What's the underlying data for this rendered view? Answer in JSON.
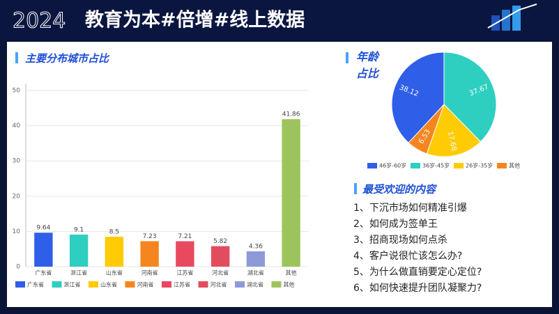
{
  "header": {
    "year": "2024",
    "title": "教育为本#倍增#线上数据"
  },
  "chart_data": [
    {
      "type": "bar",
      "title": "主要分布城市占比",
      "categories": [
        "广东省",
        "浙江省",
        "山东省",
        "河南省",
        "江苏省",
        "河北省",
        "湖北省",
        "其他"
      ],
      "values": [
        9.64,
        9.1,
        8.5,
        7.23,
        7.21,
        5.82,
        4.36,
        41.86
      ],
      "colors": [
        "#2f5fe8",
        "#2ecfc0",
        "#ffcb05",
        "#f5861f",
        "#e8495f",
        "#e24d5e",
        "#8e9ad8",
        "#9dc45c"
      ],
      "ylim": [
        0,
        50
      ],
      "yticks": [
        0,
        10,
        20,
        30,
        40,
        50
      ],
      "grid": true,
      "legend": "bottom"
    },
    {
      "type": "pie",
      "title": "年龄占比",
      "categories": [
        "46岁-60岁",
        "36岁-45岁",
        "26岁-35岁",
        "其他"
      ],
      "values": [
        38.12,
        37.67,
        17.68,
        6.53
      ],
      "colors": [
        "#2f5fe8",
        "#2ecfc0",
        "#ffcb05",
        "#f5861f"
      ],
      "legend": "bottom"
    }
  ],
  "list": {
    "title": "最受欢迎的内容",
    "items": [
      "1、下沉市场如何精准引爆",
      "2、如何成为签单王",
      "3、招商现场如何点杀",
      "4、客户说很忙该怎么办?",
      "5、为什么做直销要定心定位?",
      "6、如何快速提升团队凝聚力?"
    ]
  }
}
